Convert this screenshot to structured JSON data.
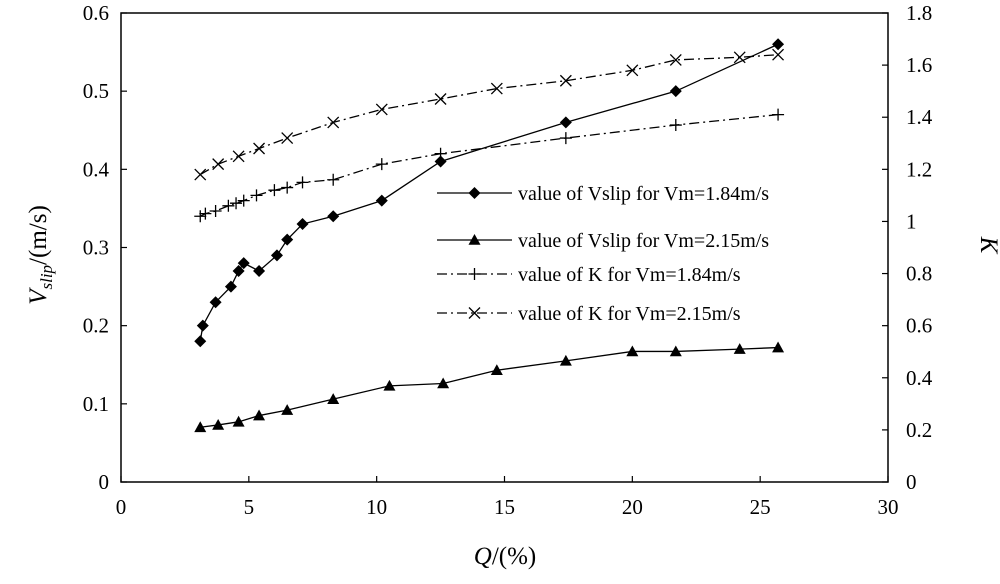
{
  "chart_data": {
    "type": "line",
    "x": {
      "label": "Q/(%)",
      "label_symbol": "Q",
      "label_suffix": "/(%)",
      "range": [
        0,
        30
      ],
      "ticks": [
        "0",
        "5",
        "10",
        "15",
        "20",
        "25",
        "30"
      ]
    },
    "y_left": {
      "label": "Vslip/(m/s)",
      "label_symbol": "V",
      "label_subscript": "slip",
      "label_suffix": "/(m/s)",
      "range": [
        0,
        0.6
      ],
      "ticks": [
        "0",
        "0.1",
        "0.2",
        "0.3",
        "0.4",
        "0.5",
        "0.6"
      ]
    },
    "y_right": {
      "label": "K",
      "range": [
        0,
        1.8
      ],
      "ticks": [
        "0",
        "0.2",
        "0.4",
        "0.6",
        "0.8",
        "1",
        "1.2",
        "1.4",
        "1.6",
        "1.8"
      ]
    },
    "legend_position": "center-right",
    "series": [
      {
        "name": "value of Vslip for Vm=1.84m/s",
        "axis": "left",
        "marker": "diamond",
        "line": "solid",
        "x": [
          3.1,
          3.2,
          3.7,
          4.3,
          4.6,
          4.8,
          5.4,
          6.1,
          6.5,
          7.1,
          8.3,
          10.2,
          12.5,
          17.4,
          21.7,
          25.7
        ],
        "y": [
          0.18,
          0.2,
          0.23,
          0.25,
          0.27,
          0.28,
          0.27,
          0.29,
          0.31,
          0.33,
          0.34,
          0.36,
          0.41,
          0.46,
          0.5,
          0.56
        ]
      },
      {
        "name": "value of Vslip for Vm=2.15m/s",
        "axis": "left",
        "marker": "triangle",
        "line": "solid",
        "x": [
          3.1,
          3.8,
          4.6,
          5.4,
          6.5,
          8.3,
          10.5,
          12.6,
          14.7,
          17.4,
          20.0,
          21.7,
          24.2,
          25.7
        ],
        "y": [
          0.07,
          0.073,
          0.077,
          0.085,
          0.092,
          0.106,
          0.123,
          0.126,
          0.143,
          0.155,
          0.167,
          0.167,
          0.17,
          0.172
        ]
      },
      {
        "name": "value of K for Vm=1.84m/s",
        "axis": "right",
        "marker": "plus",
        "line": "dashdot",
        "x": [
          3.1,
          3.3,
          3.7,
          4.2,
          4.5,
          4.8,
          5.3,
          6.0,
          6.5,
          7.1,
          8.3,
          10.2,
          12.5,
          17.4,
          21.7,
          25.7
        ],
        "y": [
          1.02,
          1.03,
          1.04,
          1.06,
          1.07,
          1.08,
          1.1,
          1.12,
          1.13,
          1.15,
          1.16,
          1.22,
          1.26,
          1.32,
          1.37,
          1.41
        ]
      },
      {
        "name": "value of K for Vm=2.15m/s",
        "axis": "right",
        "marker": "x",
        "line": "dashdot",
        "x": [
          3.1,
          3.8,
          4.6,
          5.4,
          6.5,
          8.3,
          10.2,
          12.5,
          14.7,
          17.4,
          20.0,
          21.7,
          24.2,
          25.7
        ],
        "y": [
          1.18,
          1.22,
          1.25,
          1.28,
          1.32,
          1.38,
          1.43,
          1.47,
          1.51,
          1.54,
          1.58,
          1.62,
          1.63,
          1.64
        ]
      }
    ]
  }
}
